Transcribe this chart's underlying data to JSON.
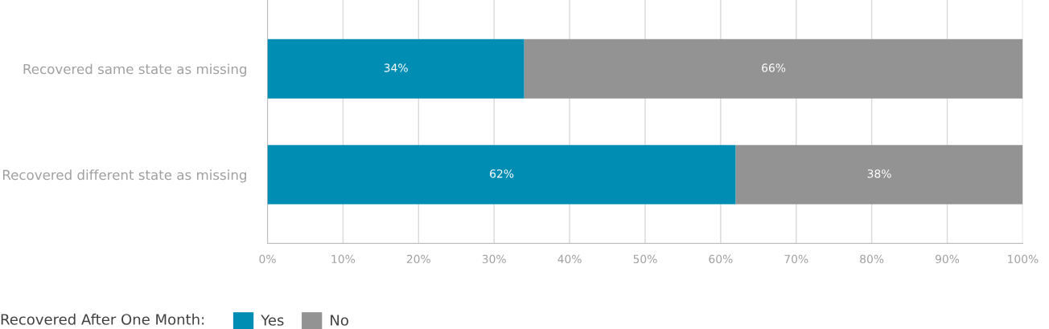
{
  "chart_data": {
    "type": "bar",
    "orientation": "horizontal",
    "stacked": true,
    "categories": [
      "Recovered same state as missing",
      "Recovered different state as missing"
    ],
    "series": [
      {
        "name": "Yes",
        "color": "#008db4",
        "values": [
          34,
          62
        ],
        "value_labels": [
          "34%",
          "62%"
        ]
      },
      {
        "name": "No",
        "color": "#939393",
        "values": [
          66,
          38
        ],
        "value_labels": [
          "66%",
          "38%"
        ]
      }
    ],
    "legend_title": "Recovered After One Month:",
    "legend": "bottom",
    "xlim": [
      0,
      100
    ],
    "xticks": [
      {
        "value": 0,
        "label": "0%"
      },
      {
        "value": 10,
        "label": "10%"
      },
      {
        "value": 20,
        "label": "20%"
      },
      {
        "value": 30,
        "label": "30%"
      },
      {
        "value": 40,
        "label": "40%"
      },
      {
        "value": 50,
        "label": "50%"
      },
      {
        "value": 60,
        "label": "60%"
      },
      {
        "value": 70,
        "label": "70%"
      },
      {
        "value": 80,
        "label": "80%"
      },
      {
        "value": 90,
        "label": "90%"
      },
      {
        "value": 100,
        "label": "100%"
      }
    ],
    "grid": "x"
  }
}
